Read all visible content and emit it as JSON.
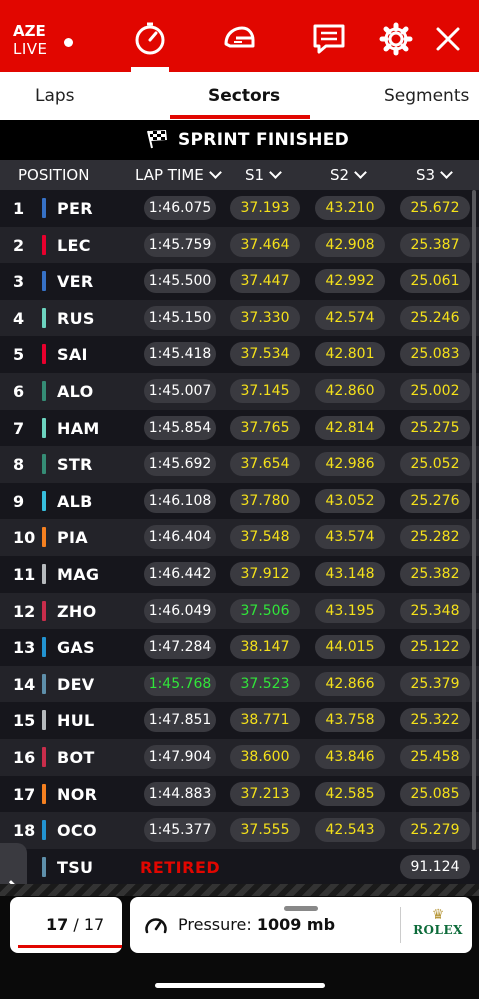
{
  "header": {
    "live_line1": "AZE",
    "live_line2": "LIVE",
    "icons": [
      "timer-icon",
      "helmet-icon",
      "message-icon",
      "gear-icon",
      "close-icon"
    ]
  },
  "tabs": [
    {
      "label": "Laps"
    },
    {
      "label": "Sectors"
    },
    {
      "label": "Segments"
    }
  ],
  "status": "SPRINT FINISHED",
  "columns": {
    "position": "POSITION",
    "laptime": "LAP TIME",
    "s1": "S1",
    "s2": "S2",
    "s3": "S3"
  },
  "rows": [
    {
      "pos": "1",
      "driver": "PER",
      "team_color": "#3671c6",
      "laptime": "1:46.075",
      "s1": "37.193",
      "s2": "43.210",
      "s3": "25.672"
    },
    {
      "pos": "2",
      "driver": "LEC",
      "team_color": "#e8002d",
      "laptime": "1:45.759",
      "s1": "37.464",
      "s2": "42.908",
      "s3": "25.387"
    },
    {
      "pos": "3",
      "driver": "VER",
      "team_color": "#3671c6",
      "laptime": "1:45.500",
      "s1": "37.447",
      "s2": "42.992",
      "s3": "25.061"
    },
    {
      "pos": "4",
      "driver": "RUS",
      "team_color": "#6cd3bf",
      "laptime": "1:45.150",
      "s1": "37.330",
      "s2": "42.574",
      "s3": "25.246"
    },
    {
      "pos": "5",
      "driver": "SAI",
      "team_color": "#e8002d",
      "laptime": "1:45.418",
      "s1": "37.534",
      "s2": "42.801",
      "s3": "25.083"
    },
    {
      "pos": "6",
      "driver": "ALO",
      "team_color": "#358c75",
      "laptime": "1:45.007",
      "s1": "37.145",
      "s2": "42.860",
      "s3": "25.002"
    },
    {
      "pos": "7",
      "driver": "HAM",
      "team_color": "#6cd3bf",
      "laptime": "1:45.854",
      "s1": "37.765",
      "s2": "42.814",
      "s3": "25.275"
    },
    {
      "pos": "8",
      "driver": "STR",
      "team_color": "#358c75",
      "laptime": "1:45.692",
      "s1": "37.654",
      "s2": "42.986",
      "s3": "25.052"
    },
    {
      "pos": "9",
      "driver": "ALB",
      "team_color": "#37bedd",
      "laptime": "1:46.108",
      "s1": "37.780",
      "s2": "43.052",
      "s3": "25.276"
    },
    {
      "pos": "10",
      "driver": "PIA",
      "team_color": "#f58020",
      "laptime": "1:46.404",
      "s1": "37.548",
      "s2": "43.574",
      "s3": "25.282"
    },
    {
      "pos": "11",
      "driver": "MAG",
      "team_color": "#b6babd",
      "laptime": "1:46.442",
      "s1": "37.912",
      "s2": "43.148",
      "s3": "25.382"
    },
    {
      "pos": "12",
      "driver": "ZHO",
      "team_color": "#c92d4b",
      "laptime": "1:46.049",
      "s1": "37.506",
      "s1_color": "green",
      "s2": "43.195",
      "s3": "25.348"
    },
    {
      "pos": "13",
      "driver": "GAS",
      "team_color": "#2293d1",
      "laptime": "1:47.284",
      "s1": "38.147",
      "s2": "44.015",
      "s3": "25.122"
    },
    {
      "pos": "14",
      "driver": "DEV",
      "team_color": "#5e8faa",
      "laptime": "1:45.768",
      "laptime_color": "green",
      "s1": "37.523",
      "s1_color": "green",
      "s2": "42.866",
      "s3": "25.379"
    },
    {
      "pos": "15",
      "driver": "HUL",
      "team_color": "#b6babd",
      "laptime": "1:47.851",
      "s1": "38.771",
      "s2": "43.758",
      "s3": "25.322"
    },
    {
      "pos": "16",
      "driver": "BOT",
      "team_color": "#c92d4b",
      "laptime": "1:47.904",
      "s1": "38.600",
      "s2": "43.846",
      "s3": "25.458"
    },
    {
      "pos": "17",
      "driver": "NOR",
      "team_color": "#f58020",
      "laptime": "1:44.883",
      "s1": "37.213",
      "s2": "42.585",
      "s3": "25.085"
    },
    {
      "pos": "18",
      "driver": "OCO",
      "team_color": "#2293d1",
      "laptime": "1:45.377",
      "s1": "37.555",
      "s2": "42.543",
      "s3": "25.279"
    },
    {
      "pos": "",
      "driver": "TSU",
      "team_color": "#5e8faa",
      "retired": "RETIRED",
      "s3": "91.124",
      "s3_color": "white"
    }
  ],
  "bottom": {
    "lap_current": "17",
    "lap_sep": "/",
    "lap_total": "17",
    "pressure_label": "Pressure:",
    "pressure_value": "1009 mb",
    "sponsor": "ROLEX"
  },
  "colors": {
    "brand_red": "#e10600",
    "sector_yellow": "#f5e11a",
    "personal_best_green": "#31e53a"
  }
}
